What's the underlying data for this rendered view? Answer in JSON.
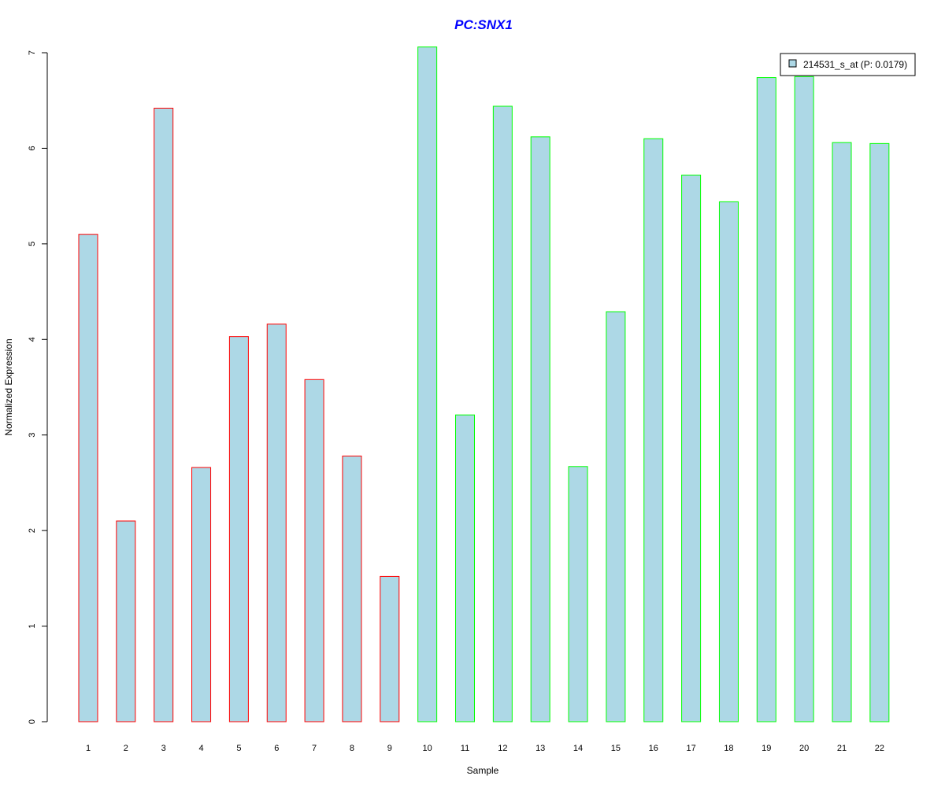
{
  "chart_data": {
    "type": "bar",
    "title": "PC:SNX1",
    "xlabel": "Sample",
    "ylabel": "Normalized Expression",
    "ylim": [
      0,
      7
    ],
    "yticks": [
      "0",
      "1",
      "2",
      "3",
      "4",
      "5",
      "6",
      "7"
    ],
    "categories": [
      "1",
      "2",
      "3",
      "4",
      "5",
      "6",
      "7",
      "8",
      "9",
      "10",
      "11",
      "12",
      "13",
      "14",
      "15",
      "16",
      "17",
      "18",
      "19",
      "20",
      "21",
      "22"
    ],
    "series": [
      {
        "name": "214531_s_at (P: 0.0179)",
        "values": [
          5.1,
          2.1,
          6.42,
          2.66,
          4.03,
          4.16,
          3.58,
          2.78,
          1.52,
          7.06,
          3.21,
          6.44,
          6.12,
          2.67,
          4.29,
          6.1,
          5.72,
          5.44,
          6.74,
          6.75,
          6.06,
          6.05
        ]
      }
    ],
    "bar_fill": "#add8e6",
    "group_edge_colors": [
      "#ff0000",
      "#ff0000",
      "#ff0000",
      "#ff0000",
      "#ff0000",
      "#ff0000",
      "#ff0000",
      "#ff0000",
      "#ff0000",
      "#00ff00",
      "#00ff00",
      "#00ff00",
      "#00ff00",
      "#00ff00",
      "#00ff00",
      "#00ff00",
      "#00ff00",
      "#00ff00",
      "#00ff00",
      "#00ff00",
      "#00ff00",
      "#00ff00"
    ],
    "title_color": "#0000ff",
    "legend_position": "top-right",
    "grid": false
  }
}
